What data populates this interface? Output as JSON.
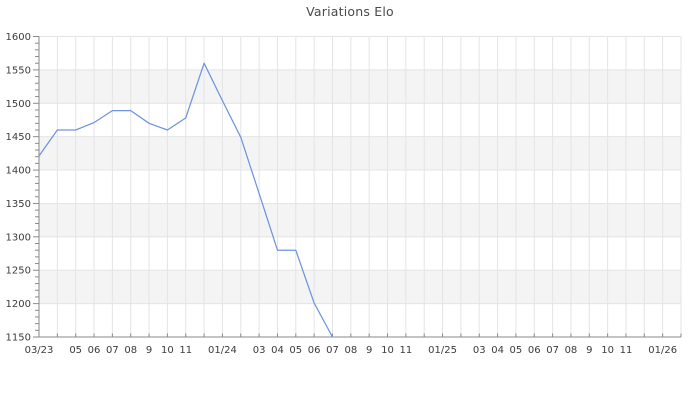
{
  "title": "Variations Elo",
  "colors": {
    "background": "#ffffff",
    "line": "#6f93e0",
    "band_gray": "#f4f4f4",
    "gridline": "#e4e4e4",
    "axis": "#8a8a8a",
    "tick": "#8a8a8a",
    "axis_label": "#3c3c3c",
    "title": "#4a4a4a"
  },
  "chart_data": {
    "type": "line",
    "title": "Variations Elo",
    "xlabel": "",
    "ylabel": "",
    "legend": "none",
    "grid": "on",
    "alternating_horizontal_bands": true,
    "y_axis": {
      "min": 1150,
      "max": 1600,
      "major_step": 50,
      "minor_tick_step": 10,
      "tick_labels": [
        "1600",
        "1550",
        "1500",
        "1450",
        "1400",
        "1350",
        "1300",
        "1250",
        "1200",
        "1150"
      ]
    },
    "x_axis": {
      "unit": "month",
      "start_month": "03/23",
      "end_month_extent": "02/26",
      "months_spanned": 35,
      "tick_every_month": true,
      "labels": [
        {
          "m": 0,
          "label": "03/23"
        },
        {
          "m": 2,
          "label": "05"
        },
        {
          "m": 3,
          "label": "06"
        },
        {
          "m": 4,
          "label": "07"
        },
        {
          "m": 5,
          "label": "08"
        },
        {
          "m": 6,
          "label": "9"
        },
        {
          "m": 7,
          "label": "10"
        },
        {
          "m": 8,
          "label": "11"
        },
        {
          "m": 10,
          "label": "01/24"
        },
        {
          "m": 12,
          "label": "03"
        },
        {
          "m": 13,
          "label": "04"
        },
        {
          "m": 14,
          "label": "05"
        },
        {
          "m": 15,
          "label": "06"
        },
        {
          "m": 16,
          "label": "07"
        },
        {
          "m": 17,
          "label": "08"
        },
        {
          "m": 18,
          "label": "9"
        },
        {
          "m": 19,
          "label": "10"
        },
        {
          "m": 20,
          "label": "11"
        },
        {
          "m": 22,
          "label": "01/25"
        },
        {
          "m": 24,
          "label": "03"
        },
        {
          "m": 25,
          "label": "04"
        },
        {
          "m": 26,
          "label": "05"
        },
        {
          "m": 27,
          "label": "06"
        },
        {
          "m": 28,
          "label": "07"
        },
        {
          "m": 29,
          "label": "08"
        },
        {
          "m": 30,
          "label": "9"
        },
        {
          "m": 31,
          "label": "10"
        },
        {
          "m": 32,
          "label": "11"
        },
        {
          "m": 34,
          "label": "01/26"
        }
      ]
    },
    "series": [
      {
        "name": "Elo",
        "points": [
          {
            "month": "03/23",
            "m": 0,
            "elo": 1421
          },
          {
            "month": "04/23",
            "m": 1,
            "elo": 1460
          },
          {
            "month": "05/23",
            "m": 2,
            "elo": 1460
          },
          {
            "month": "06/23",
            "m": 3,
            "elo": 1471
          },
          {
            "month": "07/23",
            "m": 4,
            "elo": 1489
          },
          {
            "month": "08/23",
            "m": 5,
            "elo": 1489
          },
          {
            "month": "09/23",
            "m": 6,
            "elo": 1470
          },
          {
            "month": "10/23",
            "m": 7,
            "elo": 1460
          },
          {
            "month": "11/23",
            "m": 8,
            "elo": 1478
          },
          {
            "month": "12/23",
            "m": 9,
            "elo": 1560
          },
          {
            "month": "01/24",
            "m": 10,
            "elo": 1504
          },
          {
            "month": "02/24",
            "m": 11,
            "elo": 1449
          },
          {
            "month": "03/24",
            "m": 12,
            "elo": 1365
          },
          {
            "month": "04/24",
            "m": 13,
            "elo": 1280
          },
          {
            "month": "05/24",
            "m": 14,
            "elo": 1280
          },
          {
            "month": "06/24",
            "m": 15,
            "elo": 1201
          },
          {
            "month": "07/24",
            "m": 16,
            "elo": 1150
          }
        ]
      }
    ]
  }
}
